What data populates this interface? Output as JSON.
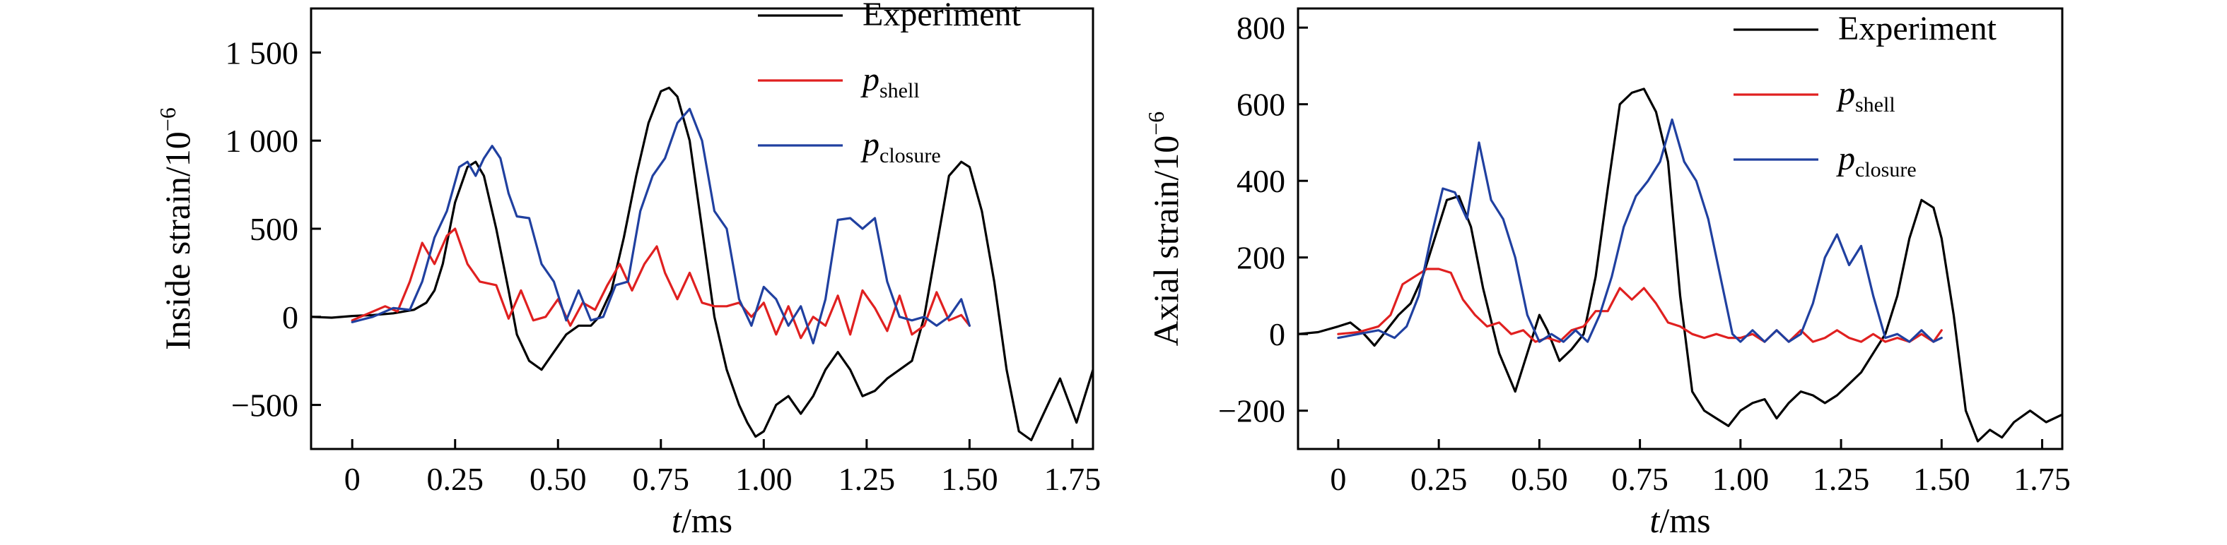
{
  "chart_data": [
    {
      "type": "line",
      "xlabel_var": "t",
      "xlabel_unit": "/ms",
      "ylabel": "Inside strain/10",
      "ylabel_exp": "−6",
      "xlim": [
        -0.1,
        1.8
      ],
      "ylim": [
        -750,
        1750
      ],
      "xticks": [
        0,
        0.25,
        0.5,
        0.75,
        1.0,
        1.25,
        1.5,
        1.75
      ],
      "xtick_labels": [
        "0",
        "0.25",
        "0.50",
        "0.75",
        "1.00",
        "1.25",
        "1.50",
        "1.75"
      ],
      "yticks": [
        -500,
        0,
        500,
        1000,
        1500
      ],
      "ytick_labels": [
        "−500",
        "0",
        "500",
        "1 000",
        "1 500"
      ],
      "legend_position": "top-right",
      "series": [
        {
          "name": "Experiment",
          "color": "#000000",
          "x": [
            -0.1,
            -0.05,
            0,
            0.05,
            0.1,
            0.15,
            0.18,
            0.2,
            0.22,
            0.25,
            0.28,
            0.3,
            0.32,
            0.35,
            0.38,
            0.4,
            0.43,
            0.46,
            0.49,
            0.52,
            0.55,
            0.58,
            0.6,
            0.63,
            0.66,
            0.69,
            0.72,
            0.75,
            0.77,
            0.79,
            0.82,
            0.85,
            0.88,
            0.91,
            0.94,
            0.96,
            0.98,
            1.0,
            1.03,
            1.06,
            1.09,
            1.12,
            1.15,
            1.18,
            1.21,
            1.24,
            1.27,
            1.3,
            1.33,
            1.36,
            1.39,
            1.42,
            1.45,
            1.48,
            1.5,
            1.53,
            1.56,
            1.59,
            1.62,
            1.65,
            1.68,
            1.72,
            1.76,
            1.8
          ],
          "y": [
            0,
            -5,
            5,
            10,
            20,
            40,
            80,
            150,
            300,
            650,
            850,
            880,
            800,
            500,
            150,
            -100,
            -250,
            -300,
            -200,
            -100,
            -50,
            -50,
            0,
            150,
            450,
            800,
            1100,
            1280,
            1300,
            1250,
            1000,
            500,
            0,
            -300,
            -500,
            -600,
            -680,
            -650,
            -500,
            -450,
            -550,
            -450,
            -300,
            -200,
            -300,
            -450,
            -420,
            -350,
            -300,
            -250,
            0,
            400,
            800,
            880,
            850,
            600,
            200,
            -300,
            -650,
            -700,
            -550,
            -350,
            -600,
            -300
          ]
        },
        {
          "name": "shell",
          "color": "#e02020",
          "x": [
            0,
            0.04,
            0.08,
            0.11,
            0.14,
            0.17,
            0.2,
            0.23,
            0.25,
            0.28,
            0.31,
            0.35,
            0.38,
            0.41,
            0.44,
            0.47,
            0.5,
            0.53,
            0.56,
            0.59,
            0.62,
            0.65,
            0.68,
            0.71,
            0.74,
            0.76,
            0.79,
            0.82,
            0.85,
            0.88,
            0.91,
            0.94,
            0.97,
            1.0,
            1.03,
            1.06,
            1.09,
            1.12,
            1.15,
            1.18,
            1.21,
            1.24,
            1.27,
            1.3,
            1.33,
            1.36,
            1.39,
            1.42,
            1.45,
            1.48,
            1.5
          ],
          "y": [
            -20,
            20,
            60,
            30,
            200,
            420,
            300,
            460,
            500,
            300,
            200,
            180,
            -10,
            150,
            -20,
            0,
            100,
            -50,
            80,
            40,
            180,
            300,
            150,
            300,
            400,
            250,
            100,
            250,
            80,
            60,
            60,
            80,
            0,
            80,
            -100,
            60,
            -120,
            0,
            -50,
            120,
            -100,
            150,
            50,
            -80,
            120,
            -100,
            -50,
            140,
            -20,
            10,
            -50
          ]
        },
        {
          "name": "closure",
          "color": "#2040a0",
          "x": [
            0,
            0.05,
            0.1,
            0.14,
            0.17,
            0.2,
            0.23,
            0.26,
            0.28,
            0.3,
            0.32,
            0.34,
            0.36,
            0.38,
            0.4,
            0.43,
            0.46,
            0.49,
            0.52,
            0.55,
            0.58,
            0.61,
            0.64,
            0.67,
            0.7,
            0.73,
            0.76,
            0.79,
            0.82,
            0.85,
            0.88,
            0.91,
            0.94,
            0.97,
            1.0,
            1.03,
            1.06,
            1.09,
            1.12,
            1.15,
            1.18,
            1.21,
            1.24,
            1.27,
            1.3,
            1.33,
            1.36,
            1.39,
            1.42,
            1.45,
            1.48,
            1.5
          ],
          "y": [
            -30,
            0,
            50,
            40,
            200,
            450,
            600,
            850,
            880,
            800,
            900,
            970,
            900,
            700,
            570,
            560,
            300,
            200,
            -20,
            150,
            -20,
            0,
            180,
            200,
            600,
            800,
            900,
            1100,
            1180,
            1000,
            600,
            500,
            100,
            -50,
            170,
            100,
            -50,
            60,
            -150,
            100,
            550,
            560,
            500,
            560,
            200,
            0,
            -20,
            0,
            -50,
            0,
            100,
            -50
          ]
        }
      ]
    },
    {
      "type": "line",
      "xlabel_var": "t",
      "xlabel_unit": "/ms",
      "ylabel": "Axial strain/10",
      "ylabel_exp": "−6",
      "xlim": [
        -0.1,
        1.8
      ],
      "ylim": [
        -300,
        850
      ],
      "xticks": [
        0,
        0.25,
        0.5,
        0.75,
        1.0,
        1.25,
        1.5,
        1.75
      ],
      "xtick_labels": [
        "0",
        "0.25",
        "0.50",
        "0.75",
        "1.00",
        "1.25",
        "1.50",
        "1.75"
      ],
      "yticks": [
        -200,
        0,
        200,
        400,
        600,
        800
      ],
      "ytick_labels": [
        "−200",
        "0",
        "200",
        "400",
        "600",
        "800"
      ],
      "legend_position": "top-right",
      "series": [
        {
          "name": "Experiment",
          "color": "#000000",
          "x": [
            -0.1,
            -0.05,
            0,
            0.03,
            0.06,
            0.09,
            0.12,
            0.15,
            0.18,
            0.21,
            0.24,
            0.27,
            0.3,
            0.33,
            0.36,
            0.4,
            0.44,
            0.47,
            0.5,
            0.52,
            0.55,
            0.58,
            0.61,
            0.64,
            0.67,
            0.7,
            0.73,
            0.76,
            0.79,
            0.82,
            0.85,
            0.88,
            0.91,
            0.94,
            0.97,
            1.0,
            1.03,
            1.06,
            1.09,
            1.12,
            1.15,
            1.18,
            1.21,
            1.24,
            1.27,
            1.3,
            1.33,
            1.36,
            1.39,
            1.42,
            1.45,
            1.48,
            1.5,
            1.53,
            1.56,
            1.59,
            1.62,
            1.65,
            1.68,
            1.72,
            1.76,
            1.8
          ],
          "y": [
            0,
            5,
            20,
            30,
            5,
            -30,
            10,
            50,
            80,
            150,
            250,
            350,
            360,
            280,
            120,
            -50,
            -150,
            -50,
            50,
            10,
            -70,
            -40,
            0,
            150,
            380,
            600,
            630,
            640,
            580,
            450,
            100,
            -150,
            -200,
            -220,
            -240,
            -200,
            -180,
            -170,
            -220,
            -180,
            -150,
            -160,
            -180,
            -160,
            -130,
            -100,
            -50,
            0,
            100,
            250,
            350,
            330,
            250,
            50,
            -200,
            -280,
            -250,
            -270,
            -230,
            -200,
            -230,
            -210
          ]
        },
        {
          "name": "shell",
          "color": "#e02020",
          "x": [
            0,
            0.05,
            0.1,
            0.13,
            0.16,
            0.19,
            0.22,
            0.25,
            0.28,
            0.31,
            0.34,
            0.37,
            0.4,
            0.43,
            0.46,
            0.49,
            0.52,
            0.55,
            0.58,
            0.61,
            0.64,
            0.67,
            0.7,
            0.73,
            0.76,
            0.79,
            0.82,
            0.85,
            0.88,
            0.91,
            0.94,
            0.97,
            1.0,
            1.03,
            1.06,
            1.09,
            1.12,
            1.15,
            1.18,
            1.21,
            1.24,
            1.27,
            1.3,
            1.33,
            1.36,
            1.39,
            1.42,
            1.45,
            1.48,
            1.5
          ],
          "y": [
            0,
            5,
            20,
            50,
            130,
            150,
            170,
            170,
            160,
            90,
            50,
            20,
            30,
            0,
            10,
            -20,
            -10,
            -20,
            10,
            20,
            60,
            60,
            120,
            90,
            120,
            80,
            30,
            20,
            0,
            -10,
            0,
            -10,
            -10,
            0,
            -20,
            10,
            -20,
            10,
            -20,
            -10,
            10,
            -10,
            -20,
            0,
            -20,
            -10,
            -20,
            0,
            -20,
            10
          ]
        },
        {
          "name": "closure",
          "color": "#2040a0",
          "x": [
            0,
            0.05,
            0.1,
            0.14,
            0.17,
            0.2,
            0.23,
            0.26,
            0.29,
            0.32,
            0.35,
            0.38,
            0.41,
            0.44,
            0.47,
            0.5,
            0.53,
            0.56,
            0.59,
            0.62,
            0.65,
            0.68,
            0.71,
            0.74,
            0.77,
            0.8,
            0.83,
            0.86,
            0.89,
            0.92,
            0.95,
            0.98,
            1.0,
            1.03,
            1.06,
            1.09,
            1.12,
            1.15,
            1.18,
            1.21,
            1.24,
            1.27,
            1.3,
            1.33,
            1.36,
            1.39,
            1.42,
            1.45,
            1.48,
            1.5
          ],
          "y": [
            -10,
            0,
            10,
            -10,
            20,
            100,
            250,
            380,
            370,
            300,
            500,
            350,
            300,
            200,
            50,
            -20,
            0,
            -20,
            10,
            -20,
            50,
            150,
            280,
            360,
            400,
            450,
            560,
            450,
            400,
            300,
            150,
            0,
            -20,
            10,
            -20,
            10,
            -20,
            0,
            80,
            200,
            260,
            180,
            230,
            100,
            -10,
            0,
            -20,
            10,
            -20,
            -10
          ]
        }
      ]
    }
  ]
}
